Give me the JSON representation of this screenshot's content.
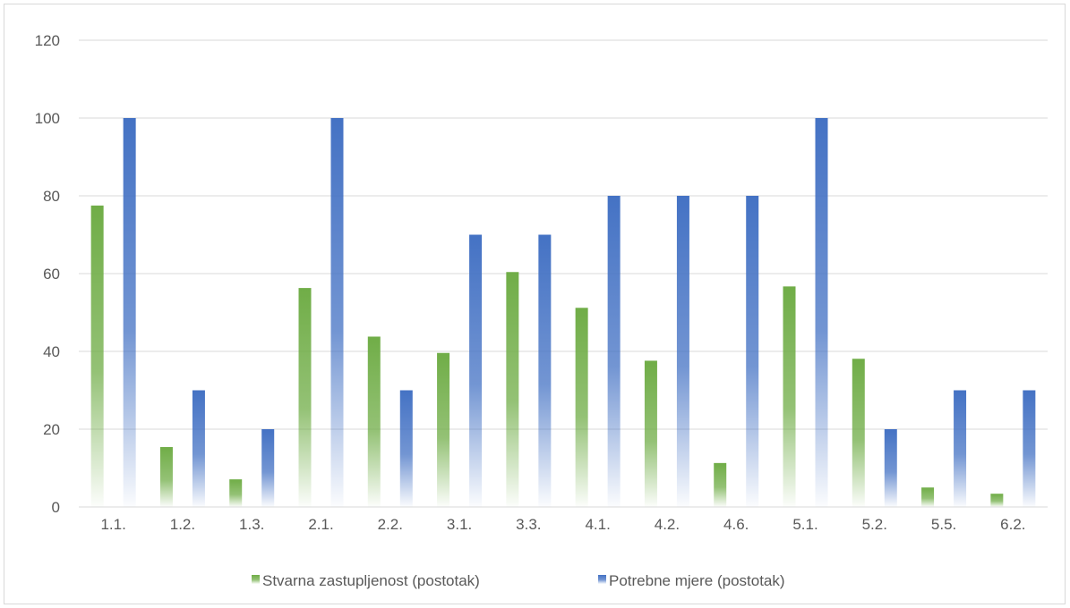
{
  "chart_data": {
    "type": "bar",
    "title": "",
    "xlabel": "",
    "ylabel": "",
    "ylim": [
      0,
      120
    ],
    "yticks": [
      0,
      20,
      40,
      60,
      80,
      100,
      120
    ],
    "grid": true,
    "legend_position": "bottom",
    "categories": [
      "1.1.",
      "1.2.",
      "1.3.",
      "2.1.",
      "2.2.",
      "3.1.",
      "3.3.",
      "4.1.",
      "4.2.",
      "4.6.",
      "5.1.",
      "5.2.",
      "5.5.",
      "6.2."
    ],
    "series": [
      {
        "name": "Stvarna zastupljenost (postotak)",
        "color": "#70ad47",
        "values": [
          77.5,
          15.4,
          7.1,
          56.3,
          43.8,
          39.6,
          60.4,
          51.2,
          37.6,
          11.3,
          56.7,
          38.1,
          5.0,
          3.4
        ]
      },
      {
        "name": "Potrebne mjere (postotak)",
        "color": "#4472c4",
        "values": [
          100,
          30,
          20,
          100,
          30,
          70,
          70,
          80,
          80,
          80,
          100,
          20,
          30,
          30
        ]
      }
    ]
  }
}
